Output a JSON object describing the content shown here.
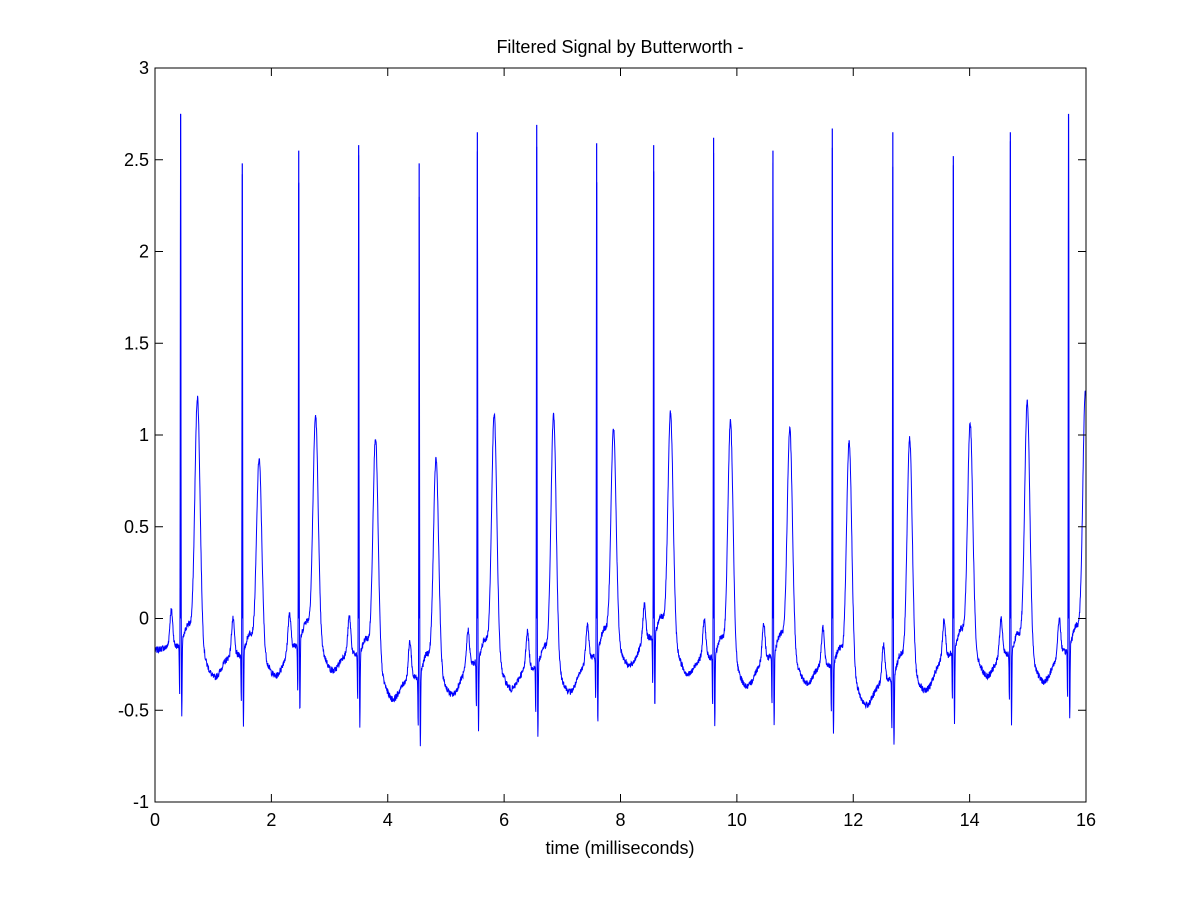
{
  "chart_data": {
    "type": "line",
    "title": "Filtered Signal by Butterworth -",
    "xlabel": "time (milliseconds)",
    "ylabel": "",
    "xlim": [
      0,
      16
    ],
    "ylim": [
      -1,
      3
    ],
    "xticks": [
      0,
      2,
      4,
      6,
      8,
      10,
      12,
      14,
      16
    ],
    "xtick_labels": [
      "0",
      "2",
      "4",
      "6",
      "8",
      "10",
      "12",
      "14",
      "16"
    ],
    "yticks": [
      -1,
      -0.5,
      0,
      0.5,
      1,
      1.5,
      2,
      2.5,
      3
    ],
    "ytick_labels": [
      "-1",
      "-0.5",
      "0",
      "0.5",
      "1",
      "1.5",
      "2",
      "2.5",
      "3"
    ],
    "grid": false,
    "legend": "none",
    "line_color": "#0000ff",
    "beats": [
      {
        "r_time": 0.44,
        "r_peak": 2.75,
        "t_peak": 1.22
      },
      {
        "r_time": 1.5,
        "r_peak": 2.48,
        "t_peak": 0.92
      },
      {
        "r_time": 2.47,
        "r_peak": 2.55,
        "t_peak": 1.09
      },
      {
        "r_time": 3.5,
        "r_peak": 2.58,
        "t_peak": 1.1
      },
      {
        "r_time": 4.54,
        "r_peak": 2.48,
        "t_peak": 1.03
      },
      {
        "r_time": 5.54,
        "r_peak": 2.65,
        "t_peak": 1.2
      },
      {
        "r_time": 6.56,
        "r_peak": 2.69,
        "t_peak": 1.24
      },
      {
        "r_time": 7.59,
        "r_peak": 2.59,
        "t_peak": 1.04
      },
      {
        "r_time": 8.57,
        "r_peak": 2.58,
        "t_peak": 1.1
      },
      {
        "r_time": 9.6,
        "r_peak": 2.62,
        "t_peak": 1.16
      },
      {
        "r_time": 10.62,
        "r_peak": 2.55,
        "t_peak": 1.09
      },
      {
        "r_time": 11.64,
        "r_peak": 2.67,
        "t_peak": 1.12
      },
      {
        "r_time": 12.68,
        "r_peak": 2.65,
        "t_peak": 1.13
      },
      {
        "r_time": 13.72,
        "r_peak": 2.52,
        "t_peak": 1.09
      },
      {
        "r_time": 14.7,
        "r_peak": 2.65,
        "t_peak": 1.24
      },
      {
        "r_time": 15.7,
        "r_peak": 2.75,
        "t_peak": 1.24
      }
    ]
  }
}
